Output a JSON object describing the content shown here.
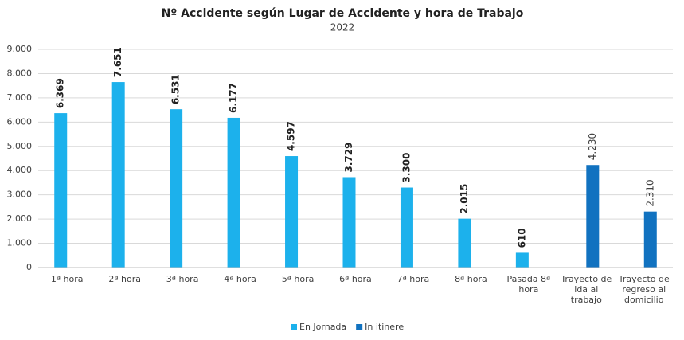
{
  "chart_data": {
    "type": "bar",
    "title": "Nº Accidente según Lugar de Accidente y hora de Trabajo",
    "subtitle": "2022",
    "categories": [
      "1ª hora",
      "2ª hora",
      "3ª hora",
      "4ª hora",
      "5ª hora",
      "6ª hora",
      "7ª hora",
      "8ª hora",
      "Pasada 8ª hora",
      "Trayecto de ida al trabajo",
      "Trayecto de regreso al domicilio"
    ],
    "series": [
      {
        "name": "En Jornada",
        "color": "#1cb1ec",
        "values": [
          6369,
          7651,
          6531,
          6177,
          4597,
          3729,
          3300,
          2015,
          610,
          null,
          null
        ],
        "value_labels": [
          "6.369",
          "7.651",
          "6.531",
          "6.177",
          "4.597",
          "3.729",
          "3.300",
          "2.015",
          "610",
          null,
          null
        ]
      },
      {
        "name": "In itinere",
        "color": "#1172c0",
        "values": [
          null,
          null,
          null,
          null,
          null,
          null,
          null,
          null,
          null,
          4230,
          2310
        ],
        "value_labels": [
          null,
          null,
          null,
          null,
          null,
          null,
          null,
          null,
          null,
          "4.230",
          "2.310"
        ]
      }
    ],
    "ylim": [
      0,
      9000
    ],
    "yticks": [
      0,
      {
        "value": 1000,
        "label": "1.000"
      },
      {
        "value": 2000,
        "label": "2.000"
      },
      {
        "value": 3000,
        "label": "3.000"
      },
      {
        "value": 4000,
        "label": "4.000"
      },
      {
        "value": 5000,
        "label": "5.000"
      },
      {
        "value": 6000,
        "label": "6.000"
      },
      {
        "value": 7000,
        "label": "7.000"
      },
      {
        "value": 8000,
        "label": "8.000"
      },
      {
        "value": 9000,
        "label": "9.000"
      }
    ],
    "grid": true,
    "legend": "bottom"
  }
}
